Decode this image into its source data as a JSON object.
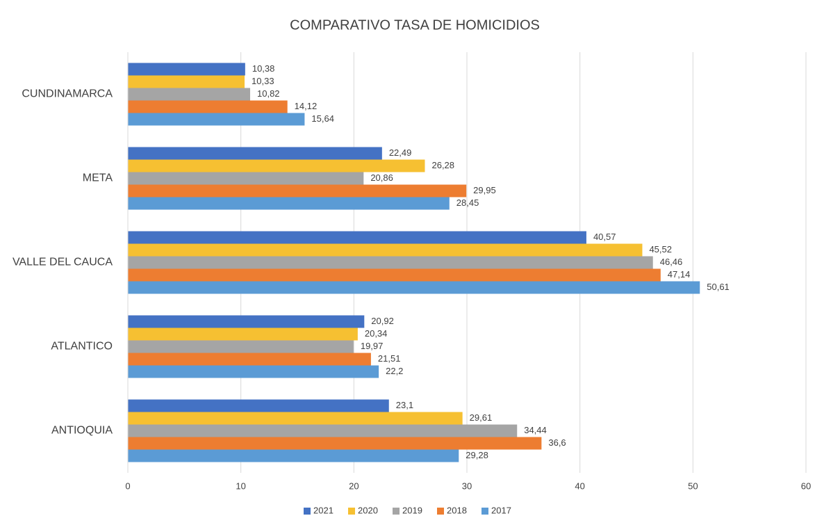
{
  "chart_data": {
    "type": "hbar",
    "title": "COMPARATIVO TASA DE HOMICIDIOS",
    "categories": [
      "CUNDINAMARCA",
      "META",
      "VALLE DEL CAUCA",
      "ATLANTICO",
      "ANTIOQUIA"
    ],
    "series": [
      {
        "name": "2021",
        "color": "#4472c4",
        "values": [
          10.38,
          22.49,
          40.57,
          20.92,
          23.1
        ],
        "value_labels": [
          "10,38",
          "22,49",
          "40,57",
          "20,92",
          "23,1"
        ]
      },
      {
        "name": "2020",
        "color": "#f6c032",
        "values": [
          10.33,
          26.28,
          45.52,
          20.34,
          29.61
        ],
        "value_labels": [
          "10,33",
          "26,28",
          "45,52",
          "20,34",
          "29,61"
        ]
      },
      {
        "name": "2019",
        "color": "#a5a5a5",
        "values": [
          10.82,
          20.86,
          46.46,
          19.97,
          34.44
        ],
        "value_labels": [
          "10,82",
          "20,86",
          "46,46",
          "19,97",
          "34,44"
        ]
      },
      {
        "name": "2018",
        "color": "#ed7d31",
        "values": [
          14.12,
          29.95,
          47.14,
          21.51,
          36.6
        ],
        "value_labels": [
          "14,12",
          "29,95",
          "47,14",
          "21,51",
          "36,6"
        ]
      },
      {
        "name": "2017",
        "color": "#5b9bd5",
        "values": [
          15.64,
          28.45,
          50.61,
          22.2,
          29.28
        ],
        "value_labels": [
          "15,64",
          "28,45",
          "50,61",
          "22,2",
          "29,28"
        ]
      }
    ],
    "xlim": [
      0,
      60
    ],
    "xticks": [
      0,
      10,
      20,
      30,
      40,
      50,
      60
    ],
    "grid": true,
    "legend": "bottom"
  }
}
